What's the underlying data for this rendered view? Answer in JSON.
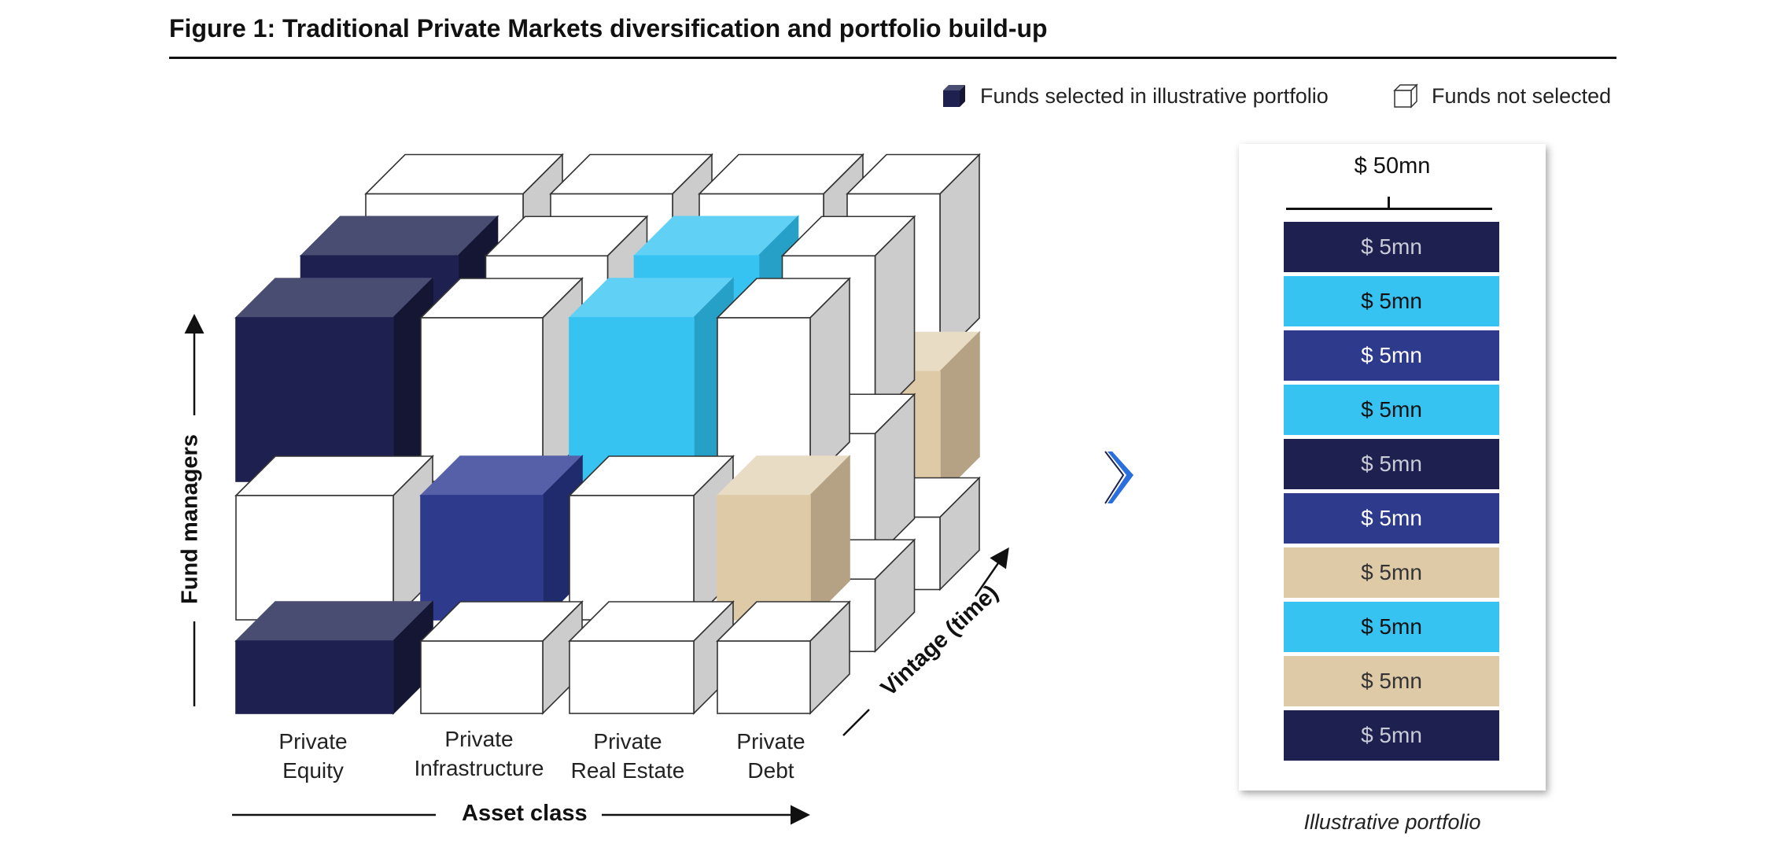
{
  "figure": {
    "title": "Figure 1: Traditional Private Markets diversification and portfolio build-up"
  },
  "legend": {
    "selected_label": "Funds selected in illustrative portfolio",
    "not_selected_label": "Funds not selected"
  },
  "axes": {
    "x_label": "Asset class",
    "y_label": "Fund managers",
    "z_label": "Vintage (time)"
  },
  "asset_classes": [
    {
      "line1": "Private",
      "line2": "Equity"
    },
    {
      "line1": "Private",
      "line2": "Infrastructure"
    },
    {
      "line1": "Private",
      "line2": "Real Estate"
    },
    {
      "line1": "Private",
      "line2": "Debt"
    }
  ],
  "colors": {
    "navy": "#1e2150",
    "royal": "#2e3a8c",
    "sky": "#36c3f2",
    "tan": "#dfcaa8",
    "white_cube": "#ffffff",
    "cube_side_grey": "#cccccc",
    "edge": "#333333"
  },
  "portfolio": {
    "total": "$ 50mn",
    "caption": "Illustrative portfolio",
    "allocations": [
      {
        "label": "$ 5mn",
        "color": "#1e2150",
        "text_color": "#c9cbd6"
      },
      {
        "label": "$ 5mn",
        "color": "#36c3f2",
        "text_color": "#111111"
      },
      {
        "label": "$ 5mn",
        "color": "#2e3a8c",
        "text_color": "#ffffff"
      },
      {
        "label": "$ 5mn",
        "color": "#36c3f2",
        "text_color": "#111111"
      },
      {
        "label": "$ 5mn",
        "color": "#1e2150",
        "text_color": "#c9cbd6"
      },
      {
        "label": "$ 5mn",
        "color": "#2e3a8c",
        "text_color": "#ffffff"
      },
      {
        "label": "$ 5mn",
        "color": "#dfcaa8",
        "text_color": "#333333"
      },
      {
        "label": "$ 5mn",
        "color": "#36c3f2",
        "text_color": "#111111"
      },
      {
        "label": "$ 5mn",
        "color": "#dfcaa8",
        "text_color": "#333333"
      },
      {
        "label": "$ 5mn",
        "color": "#1e2150",
        "text_color": "#c9cbd6"
      }
    ]
  },
  "cube_grid": {
    "description_free": true,
    "layers": [
      [
        [
          "w",
          "w",
          "w",
          "w"
        ],
        [
          "w",
          "w",
          "w",
          "t"
        ],
        [
          "w",
          "w",
          "w",
          "w"
        ]
      ],
      [
        [
          "n",
          "w",
          "s",
          "w"
        ],
        [
          "w",
          "r",
          "w",
          "w"
        ],
        [
          "w",
          "w",
          "w",
          "w"
        ]
      ],
      [
        [
          "n",
          "w",
          "s",
          "w"
        ],
        [
          "w",
          "r",
          "w",
          "t"
        ],
        [
          "n",
          "w",
          "w",
          "w"
        ]
      ]
    ]
  }
}
